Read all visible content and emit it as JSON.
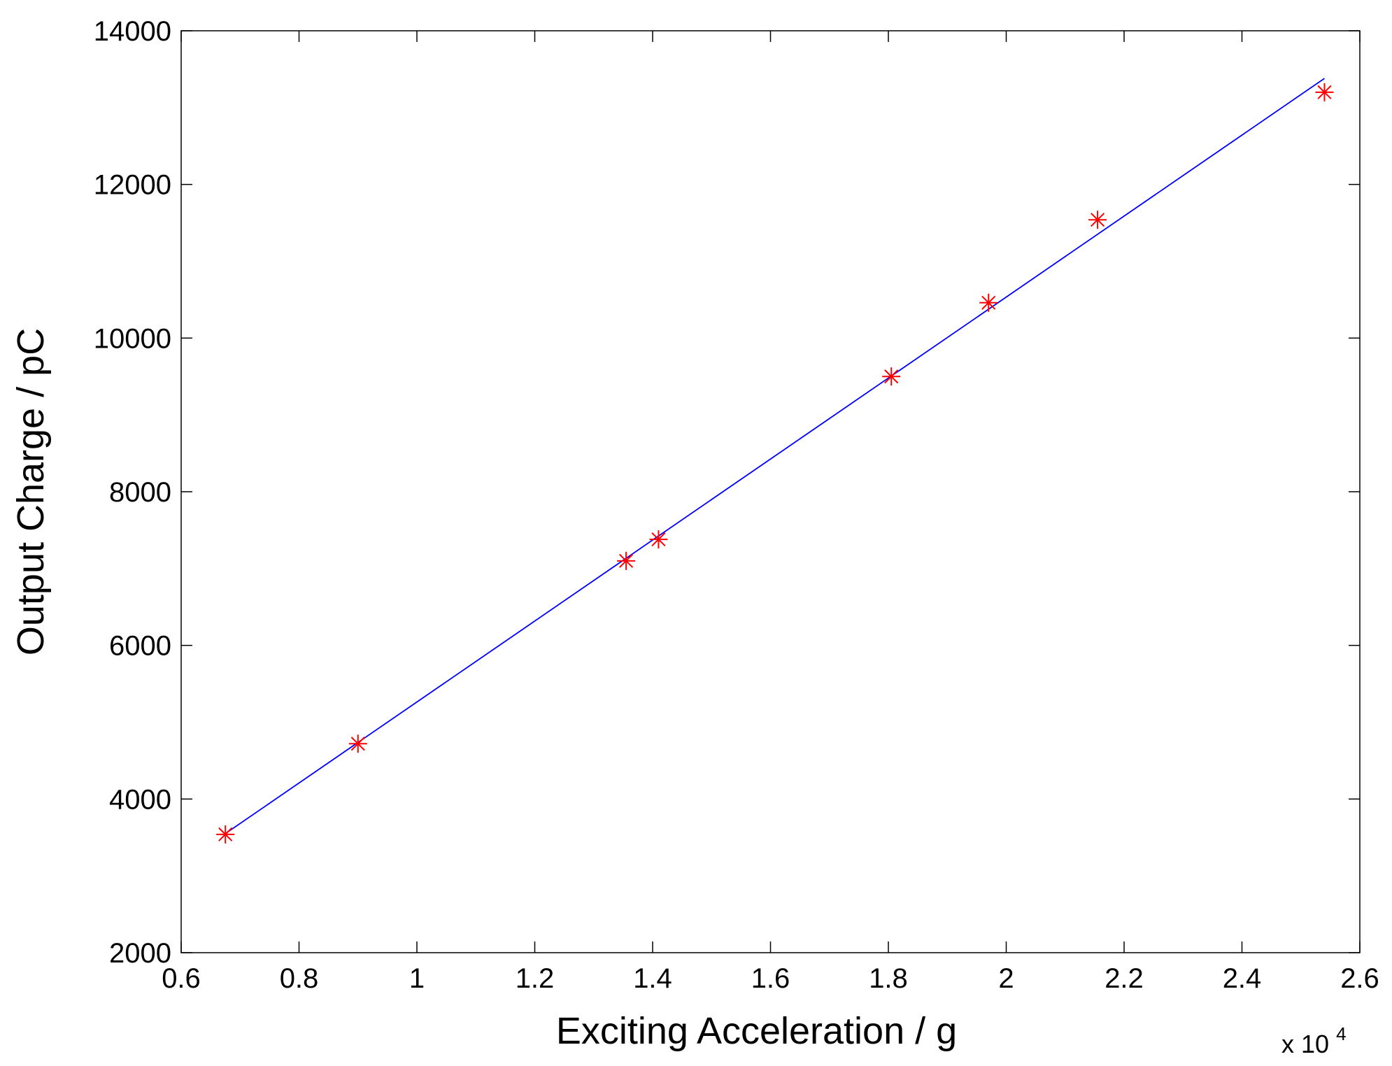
{
  "chart_data": {
    "type": "scatter",
    "title": "",
    "xlabel": "Exciting Acceleration  /  g",
    "ylabel": "Output Charge  /  pC",
    "x_multiplier_base": "x 10",
    "x_multiplier_exp": "4",
    "xlim": [
      0.6,
      2.6
    ],
    "ylim": [
      2000,
      14000
    ],
    "x_ticks": [
      0.6,
      0.8,
      1,
      1.2,
      1.4,
      1.6,
      1.8,
      2,
      2.2,
      2.4,
      2.6
    ],
    "x_tick_labels": [
      "0.6",
      "0.8",
      "1",
      "1.2",
      "1.4",
      "1.6",
      "1.8",
      "2",
      "2.2",
      "2.4",
      "2.6"
    ],
    "y_ticks": [
      2000,
      4000,
      6000,
      8000,
      10000,
      12000,
      14000
    ],
    "y_tick_labels": [
      "2000",
      "4000",
      "6000",
      "8000",
      "10000",
      "12000",
      "14000"
    ],
    "grid": false,
    "series": [
      {
        "marker": "asterisk",
        "color": "#ff0000",
        "points": [
          {
            "x": 0.675,
            "y": 3540
          },
          {
            "x": 0.9,
            "y": 4720
          },
          {
            "x": 1.355,
            "y": 7100
          },
          {
            "x": 1.41,
            "y": 7380
          },
          {
            "x": 1.805,
            "y": 9500
          },
          {
            "x": 1.97,
            "y": 10460
          },
          {
            "x": 2.155,
            "y": 11540
          },
          {
            "x": 2.54,
            "y": 13200
          }
        ]
      },
      {
        "type": "line",
        "color": "#0000ff",
        "points": [
          {
            "x": 0.675,
            "y": 3550
          },
          {
            "x": 2.54,
            "y": 13380
          }
        ]
      }
    ]
  }
}
